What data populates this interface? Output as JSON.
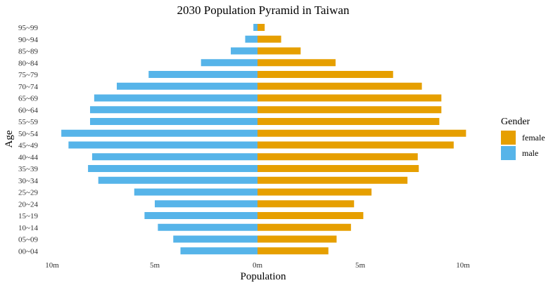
{
  "chart_data": {
    "type": "bar",
    "orientation": "horizontal",
    "title": "2030 Population Pyramid in Taiwan",
    "xlabel": "Population",
    "ylabel": "Age",
    "xlim": [
      -10,
      10
    ],
    "xticks": [
      -10,
      -5,
      0,
      5,
      10
    ],
    "xtick_labels": [
      "10m",
      "5m",
      "0m",
      "5m",
      "10m"
    ],
    "value_unit": "millions",
    "categories": [
      "00~04",
      "05~09",
      "10~14",
      "15~19",
      "20~24",
      "25~29",
      "30~34",
      "35~39",
      "40~44",
      "45~49",
      "50~54",
      "55~59",
      "60~64",
      "65~69",
      "70~74",
      "75~79",
      "80~84",
      "85~89",
      "90~94",
      "95~99"
    ],
    "series": [
      {
        "name": "female",
        "color": "#E69F00",
        "side": "right",
        "values": [
          3.45,
          3.85,
          4.55,
          5.15,
          4.7,
          5.55,
          7.3,
          7.85,
          7.8,
          9.55,
          10.15,
          8.85,
          8.95,
          8.95,
          8.0,
          6.6,
          3.8,
          2.1,
          1.15,
          0.35
        ]
      },
      {
        "name": "male",
        "color": "#56B4E9",
        "side": "left",
        "values": [
          3.75,
          4.1,
          4.85,
          5.5,
          5.0,
          6.0,
          7.75,
          8.25,
          8.05,
          9.2,
          9.55,
          8.15,
          8.15,
          7.95,
          6.85,
          5.3,
          2.75,
          1.3,
          0.6,
          0.2
        ]
      }
    ],
    "legend": {
      "title": "Gender",
      "position": "right",
      "entries": [
        "female",
        "male"
      ]
    },
    "grid": false
  }
}
